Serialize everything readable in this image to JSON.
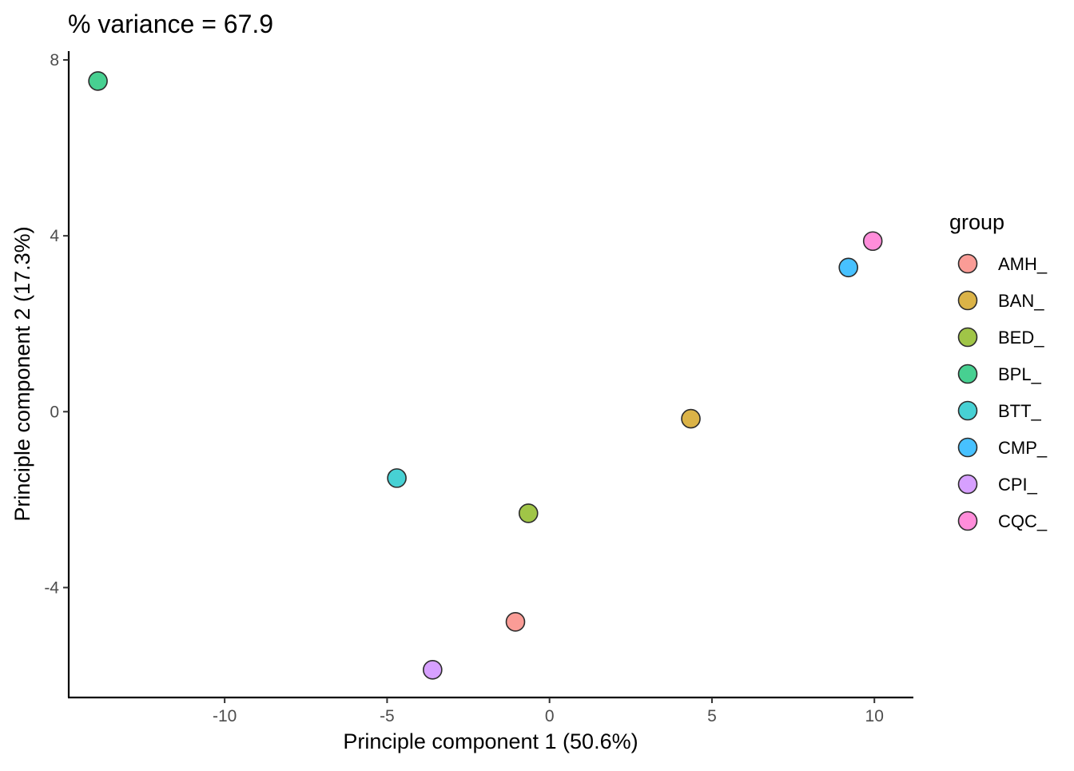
{
  "chart_data": {
    "type": "scatter",
    "title": "% variance = 67.9",
    "xlabel": "Principle component 1 (50.6%)",
    "ylabel": "Principle component 2 (17.3%)",
    "xlim": [
      -14.8,
      11.2
    ],
    "ylim": [
      -6.5,
      8.2
    ],
    "x_ticks": [
      -10,
      -5,
      0,
      5,
      10
    ],
    "x_tick_labels": [
      "-10",
      "-5",
      "0",
      "5",
      "10"
    ],
    "y_ticks": [
      -4,
      0,
      4,
      8
    ],
    "y_tick_labels": [
      "-4",
      "0",
      "4",
      "8"
    ],
    "grid": false,
    "legend": {
      "title": "group",
      "position": "right"
    },
    "series": [
      {
        "name": "AMH_",
        "color": "#F8766D",
        "x": -1.05,
        "y": -4.78
      },
      {
        "name": "BAN_",
        "color": "#CD9600",
        "x": 4.35,
        "y": -0.16
      },
      {
        "name": "BED_",
        "color": "#7CAE00",
        "x": -0.65,
        "y": -2.31
      },
      {
        "name": "BPL_",
        "color": "#00BE67",
        "x": -13.9,
        "y": 7.52
      },
      {
        "name": "BTT_",
        "color": "#00BFC4",
        "x": -4.7,
        "y": -1.51
      },
      {
        "name": "CMP_",
        "color": "#00A9FF",
        "x": 9.2,
        "y": 3.28
      },
      {
        "name": "CPI_",
        "color": "#C77CFF",
        "x": -3.6,
        "y": -5.87
      },
      {
        "name": "CQC_",
        "color": "#FF61CC",
        "x": 9.95,
        "y": 3.88
      }
    ]
  }
}
